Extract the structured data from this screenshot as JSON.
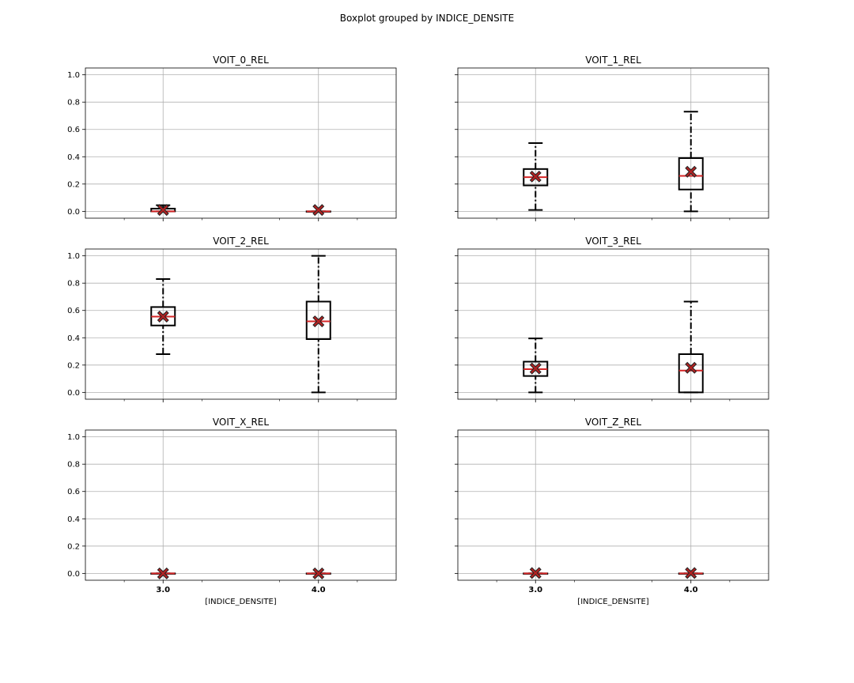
{
  "suptitle": "Boxplot grouped by INDICE_DENSITE",
  "chart_data": {
    "type": "boxplot",
    "grid": true,
    "shared_y": true,
    "ylim": [
      -0.05,
      1.05
    ],
    "yticks": [
      "0.0",
      "0.2",
      "0.4",
      "0.6",
      "0.8",
      "1.0"
    ],
    "categories": [
      "3.0",
      "4.0"
    ],
    "xlabel": "[INDICE_DENSITE]",
    "styles": {
      "box_color": "#000000",
      "median_color": "#d62728",
      "mean_marker_color": "#b22222",
      "grid_color": "#b0b0b0"
    },
    "panels": [
      {
        "title": "VOIT_0_REL",
        "boxes": [
          {
            "category": "3.0",
            "whislo": 0.0,
            "q1": 0.0,
            "med": 0.0,
            "q3": 0.02,
            "whishi": 0.045,
            "mean": 0.01
          },
          {
            "category": "4.0",
            "whislo": 0.0,
            "q1": 0.0,
            "med": 0.0,
            "q3": 0.0,
            "whishi": 0.0,
            "mean": 0.01
          }
        ]
      },
      {
        "title": "VOIT_1_REL",
        "boxes": [
          {
            "category": "3.0",
            "whislo": 0.01,
            "q1": 0.19,
            "med": 0.25,
            "q3": 0.31,
            "whishi": 0.5,
            "mean": 0.255
          },
          {
            "category": "4.0",
            "whislo": 0.0,
            "q1": 0.16,
            "med": 0.26,
            "q3": 0.39,
            "whishi": 0.73,
            "mean": 0.29
          }
        ]
      },
      {
        "title": "VOIT_2_REL",
        "boxes": [
          {
            "category": "3.0",
            "whislo": 0.28,
            "q1": 0.49,
            "med": 0.555,
            "q3": 0.625,
            "whishi": 0.83,
            "mean": 0.555
          },
          {
            "category": "4.0",
            "whislo": 0.0,
            "q1": 0.39,
            "med": 0.52,
            "q3": 0.665,
            "whishi": 1.0,
            "mean": 0.52
          }
        ]
      },
      {
        "title": "VOIT_3_REL",
        "boxes": [
          {
            "category": "3.0",
            "whislo": 0.0,
            "q1": 0.12,
            "med": 0.17,
            "q3": 0.225,
            "whishi": 0.395,
            "mean": 0.175
          },
          {
            "category": "4.0",
            "whislo": 0.0,
            "q1": 0.0,
            "med": 0.16,
            "q3": 0.28,
            "whishi": 0.665,
            "mean": 0.18
          }
        ]
      },
      {
        "title": "VOIT_X_REL",
        "boxes": [
          {
            "category": "3.0",
            "whislo": 0.0,
            "q1": 0.0,
            "med": 0.0,
            "q3": 0.0,
            "whishi": 0.0,
            "mean": 0.0
          },
          {
            "category": "4.0",
            "whislo": 0.0,
            "q1": 0.0,
            "med": 0.0,
            "q3": 0.0,
            "whishi": 0.0,
            "mean": 0.0
          }
        ]
      },
      {
        "title": "VOIT_Z_REL",
        "boxes": [
          {
            "category": "3.0",
            "whislo": 0.0,
            "q1": 0.0,
            "med": 0.0,
            "q3": 0.0,
            "whishi": 0.0,
            "mean": 0.003
          },
          {
            "category": "4.0",
            "whislo": 0.0,
            "q1": 0.0,
            "med": 0.0,
            "q3": 0.0,
            "whishi": 0.0,
            "mean": 0.003
          }
        ]
      }
    ]
  }
}
